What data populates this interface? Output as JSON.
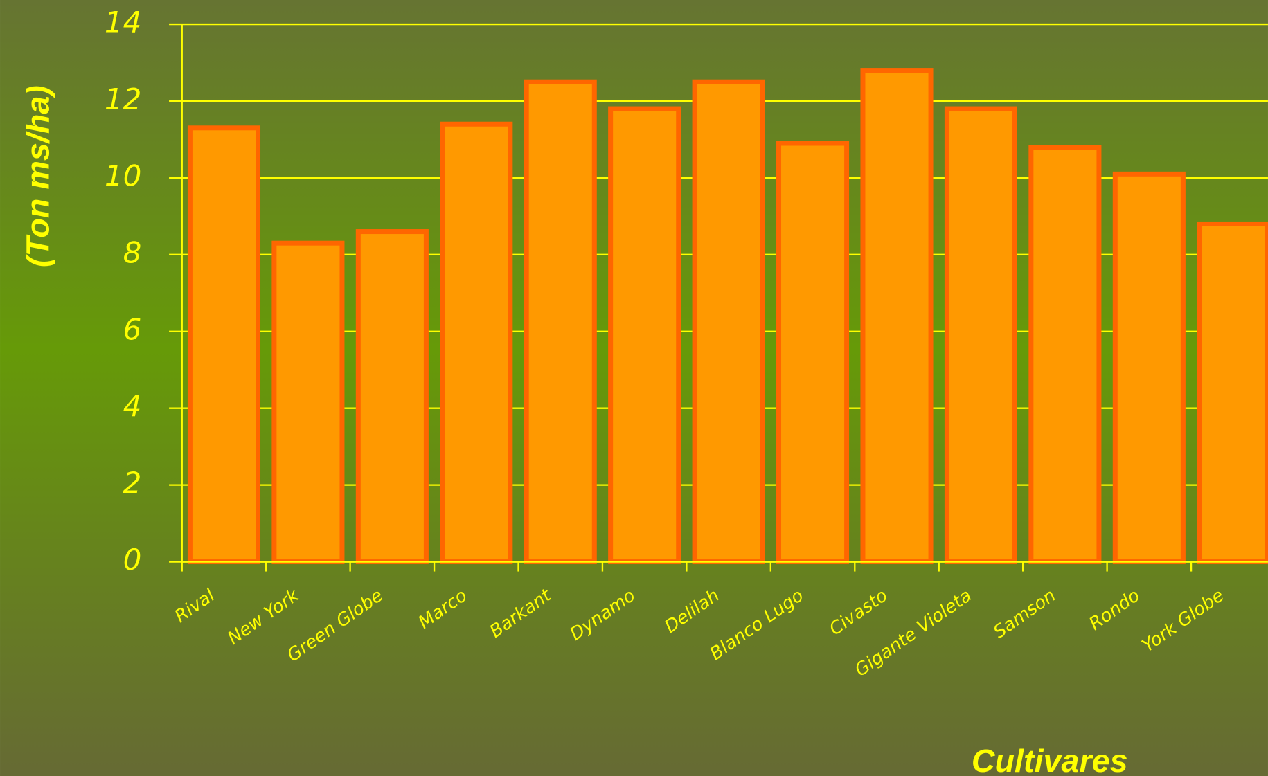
{
  "chart_data": {
    "type": "bar",
    "ylabel": "(Ton ms/ha)",
    "xlabel": "Cultivares",
    "categories": [
      "Rival",
      "New York",
      "Green Globe",
      "Marco",
      "Barkant",
      "Dynamo",
      "Delilah",
      "Blanco Lugo",
      "Civasto",
      "Gigante Violeta",
      "Samson",
      "Rondo",
      "York Globe"
    ],
    "values": [
      11.3,
      8.3,
      8.6,
      11.4,
      12.5,
      11.8,
      12.5,
      10.9,
      12.8,
      11.8,
      10.8,
      10.1,
      8.8
    ],
    "color": "#ff9900",
    "edgecolor": "#ff6600",
    "ylim": [
      0,
      14
    ],
    "yticks": [
      0,
      2,
      4,
      6,
      8,
      10,
      12,
      14
    ],
    "grid": true
  }
}
